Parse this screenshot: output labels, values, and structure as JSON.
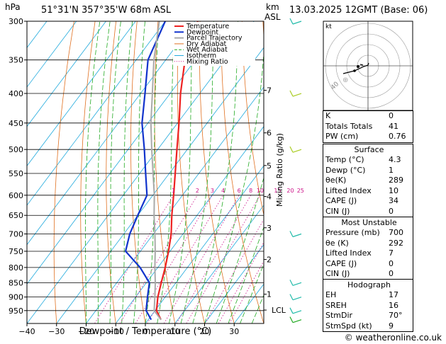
{
  "header": {
    "pressure_unit": "hPa",
    "location": "51°31'N  357°35'W  68m  ASL",
    "height_unit": "km",
    "height_unit2": "ASL",
    "datetime": "13.03.2025  12GMT  (Base: 06)"
  },
  "chart_data": {
    "type": "line",
    "chart_kind": "skew-T log-P diagram",
    "xlabel": "Dewpoint / Temperature (°C)",
    "mixing_ratio_label": "Mixing Ratio (g/kg)",
    "x_ticks": [
      -40,
      -30,
      -20,
      -10,
      0,
      10,
      20,
      30
    ],
    "x_tick_labels": [
      "−40",
      "−30",
      "−20",
      "−10",
      "0",
      "10",
      "20",
      "30"
    ],
    "pressure_levels": [
      300,
      350,
      400,
      450,
      500,
      550,
      600,
      650,
      700,
      750,
      800,
      850,
      900,
      950
    ],
    "y_scale": "log",
    "ylim": [
      1000,
      300
    ],
    "xlim_at_bottom": [
      -40,
      40
    ],
    "height_ticks": [
      {
        "km": "1",
        "p": 890
      },
      {
        "km": "2",
        "p": 775
      },
      {
        "km": "3",
        "p": 683
      },
      {
        "km": "4",
        "p": 603
      },
      {
        "km": "5",
        "p": 533
      },
      {
        "km": "6",
        "p": 468
      },
      {
        "km": "7",
        "p": 395
      }
    ],
    "lcl": {
      "label": "LCL",
      "p": 948
    },
    "mixing_ratios": [
      "1",
      "2",
      "3",
      "4",
      "6",
      "8",
      "10",
      "15",
      "20",
      "25"
    ],
    "legend_position": "top-left",
    "series": [
      {
        "name": "Temperature",
        "color": "#ee2222",
        "points": [
          [
            985,
            4.3
          ],
          [
            950,
            0.5
          ],
          [
            900,
            -2.5
          ],
          [
            850,
            -5.0
          ],
          [
            800,
            -7.5
          ],
          [
            750,
            -10.5
          ],
          [
            700,
            -14.0
          ],
          [
            650,
            -18.5
          ],
          [
            600,
            -23.0
          ],
          [
            550,
            -28.0
          ],
          [
            500,
            -33.5
          ],
          [
            450,
            -39.5
          ],
          [
            400,
            -46.5
          ],
          [
            350,
            -53.5
          ],
          [
            300,
            -59.0
          ]
        ]
      },
      {
        "name": "Dewpoint",
        "color": "#1133cc",
        "points": [
          [
            985,
            1.0
          ],
          [
            950,
            -3.0
          ],
          [
            900,
            -6.0
          ],
          [
            850,
            -9.0
          ],
          [
            800,
            -16.0
          ],
          [
            750,
            -25.0
          ],
          [
            700,
            -28.0
          ],
          [
            650,
            -30.0
          ],
          [
            600,
            -32.0
          ],
          [
            550,
            -38.0
          ],
          [
            500,
            -44.5
          ],
          [
            450,
            -52.0
          ],
          [
            400,
            -58.5
          ],
          [
            350,
            -66.0
          ],
          [
            300,
            -70.0
          ]
        ]
      },
      {
        "name": "Parcel Trajectory",
        "color": "#aaaaaa",
        "points": [
          [
            985,
            4.3
          ],
          [
            950,
            -0.3
          ],
          [
            900,
            -3.5
          ],
          [
            850,
            -7.0
          ],
          [
            800,
            -11.0
          ],
          [
            750,
            -15.0
          ],
          [
            700,
            -19.5
          ],
          [
            650,
            -24.5
          ],
          [
            600,
            -29.5
          ],
          [
            550,
            -35.5
          ],
          [
            500,
            -42.0
          ],
          [
            450,
            -49.0
          ],
          [
            400,
            -56.0
          ],
          [
            350,
            -64.0
          ],
          [
            300,
            -72.0
          ]
        ]
      },
      {
        "name": "Dry Adiabat",
        "color": "#e07020"
      },
      {
        "name": "Wet Adiabat",
        "color": "#22aa22"
      },
      {
        "name": "Isotherm",
        "color": "#22aadd"
      },
      {
        "name": "Mixing Ratio",
        "color": "#cc1188"
      }
    ],
    "wind_barbs": [
      {
        "p": 300,
        "color": "#22bbaa"
      },
      {
        "p": 400,
        "color": "#aacc22"
      },
      {
        "p": 500,
        "color": "#aacc22"
      },
      {
        "p": 700,
        "color": "#22bbaa"
      },
      {
        "p": 850,
        "color": "#22bbaa"
      },
      {
        "p": 900,
        "color": "#22bbaa"
      },
      {
        "p": 950,
        "color": "#22bbaa"
      },
      {
        "p": 985,
        "color": "#22aa22"
      }
    ]
  },
  "hodograph": {
    "label": "kt",
    "ring_label": "40"
  },
  "indices": {
    "k_label": "K",
    "k": "0",
    "tt_label": "Totals Totals",
    "tt": "41",
    "pw_label": "PW (cm)",
    "pw": "0.76"
  },
  "surface": {
    "title": "Surface",
    "temp_label": "Temp (°C)",
    "temp": "4.3",
    "dewp_label": "Dewp (°C)",
    "dewp": "1",
    "theta_label": "θe(K)",
    "theta": "289",
    "li_label": "Lifted Index",
    "li": "10",
    "cape_label": "CAPE (J)",
    "cape": "34",
    "cin_label": "CIN (J)",
    "cin": "0"
  },
  "most_unstable": {
    "title": "Most Unstable",
    "pressure_label": "Pressure (mb)",
    "pressure": "700",
    "theta_label": "θe (K)",
    "theta": "292",
    "li_label": "Lifted Index",
    "li": "7",
    "cape_label": "CAPE (J)",
    "cape": "0",
    "cin_label": "CIN (J)",
    "cin": "0"
  },
  "hodo_table": {
    "title": "Hodograph",
    "eh_label": "EH",
    "eh": "17",
    "sreh_label": "SREH",
    "sreh": "16",
    "stmdir_label": "StmDir",
    "stmdir": "70°",
    "stmspd_label": "StmSpd (kt)",
    "stmspd": "9"
  },
  "footer": {
    "credit": "© weatheronline.co.uk"
  }
}
